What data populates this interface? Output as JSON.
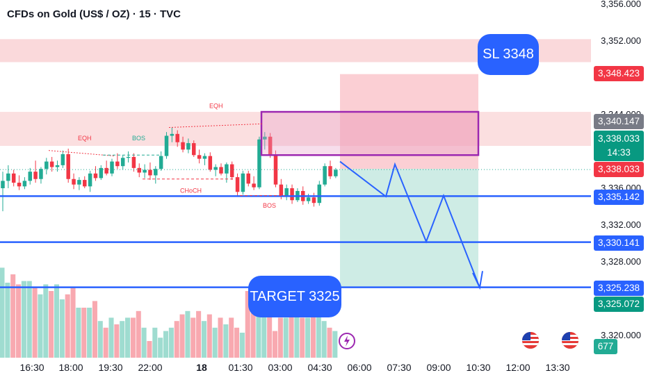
{
  "title": "CFDs on Gold (US$ / OZ) · 15 · TVC",
  "y_axis_labels": [
    "3,356.000",
    "3,352.000",
    "3,344.000",
    "3,336.000",
    "3,332.000",
    "3,328.000",
    "3,320.000"
  ],
  "x_axis_labels": [
    "16:30",
    "18:00",
    "19:30",
    "22:00",
    "18",
    "01:30",
    "03:00",
    "04:30",
    "06:00",
    "07:30",
    "09:00",
    "10:30",
    "12:00",
    "13:30"
  ],
  "price_tags": {
    "sl_level": "3,348.423",
    "upper_zone": "3,340.147",
    "last_price": "3,338.033",
    "countdown": "14:33",
    "dotted_price": "3,338.033",
    "line_1": "3,335.142",
    "line_2": "3,330.141",
    "line_3": "3,325.238",
    "target_level": "3,325.072",
    "volume": "677"
  },
  "annotations": {
    "sl_pill": "SL 3348",
    "target_pill": "TARGET 3325",
    "eqh_1": "EQH",
    "eqh_2": "EQH",
    "bos_1": "BOS",
    "bos_2": "BOS",
    "choch": "CHoCH"
  },
  "colors": {
    "up": "#22ab94",
    "down": "#f23645",
    "line_blue": "#2962ff",
    "zone_pink": "#f8c9cc",
    "box_purple": "#9c27b0"
  },
  "icons": [
    "lightning-icon",
    "us-flag-icon",
    "us-flag-icon"
  ],
  "chart_data": {
    "type": "candlestick",
    "title": "CFDs on Gold (US$ / OZ) · 15 · TVC",
    "y_range": [
      3318,
      3356
    ],
    "y_ticks": [
      3356,
      3352,
      3344,
      3336,
      3332,
      3328,
      3320
    ],
    "x_ticks": [
      "16:30",
      "18:00",
      "19:30",
      "22:00",
      "18",
      "01:30",
      "03:00",
      "04:30",
      "06:00",
      "07:30",
      "09:00",
      "10:30",
      "12:00",
      "13:30"
    ],
    "horizontal_lines": [
      3335.142,
      3330.141,
      3325.238
    ],
    "last_price": 3338.033,
    "stop_loss": 3348,
    "target": 3325,
    "candles": [
      {
        "o": 3336.0,
        "h": 3337.8,
        "l": 3333.5,
        "c": 3336.8
      },
      {
        "o": 3336.8,
        "h": 3338.5,
        "l": 3336.0,
        "c": 3337.6
      },
      {
        "o": 3337.6,
        "h": 3338.0,
        "l": 3336.2,
        "c": 3336.6
      },
      {
        "o": 3336.6,
        "h": 3337.4,
        "l": 3335.8,
        "c": 3336.2
      },
      {
        "o": 3336.2,
        "h": 3337.2,
        "l": 3335.9,
        "c": 3336.8
      },
      {
        "o": 3336.8,
        "h": 3338.2,
        "l": 3336.4,
        "c": 3337.8
      },
      {
        "o": 3337.8,
        "h": 3339.0,
        "l": 3336.6,
        "c": 3337.0
      },
      {
        "o": 3337.0,
        "h": 3338.3,
        "l": 3336.5,
        "c": 3338.1
      },
      {
        "o": 3338.1,
        "h": 3339.3,
        "l": 3337.5,
        "c": 3338.9
      },
      {
        "o": 3338.9,
        "h": 3339.4,
        "l": 3337.8,
        "c": 3338.3
      },
      {
        "o": 3338.3,
        "h": 3339.0,
        "l": 3337.8,
        "c": 3338.5
      },
      {
        "o": 3338.5,
        "h": 3340.1,
        "l": 3338.2,
        "c": 3339.7
      },
      {
        "o": 3339.7,
        "h": 3340.3,
        "l": 3336.6,
        "c": 3337.0
      },
      {
        "o": 3337.0,
        "h": 3337.6,
        "l": 3335.9,
        "c": 3336.4
      },
      {
        "o": 3336.4,
        "h": 3337.2,
        "l": 3335.8,
        "c": 3336.9
      },
      {
        "o": 3336.9,
        "h": 3337.3,
        "l": 3336.0,
        "c": 3336.2
      },
      {
        "o": 3336.2,
        "h": 3337.9,
        "l": 3335.6,
        "c": 3337.6
      },
      {
        "o": 3337.6,
        "h": 3338.4,
        "l": 3336.8,
        "c": 3337.1
      },
      {
        "o": 3337.1,
        "h": 3338.5,
        "l": 3336.9,
        "c": 3338.2
      },
      {
        "o": 3338.2,
        "h": 3339.0,
        "l": 3337.4,
        "c": 3337.6
      },
      {
        "o": 3337.6,
        "h": 3339.2,
        "l": 3337.3,
        "c": 3338.9
      },
      {
        "o": 3338.9,
        "h": 3339.8,
        "l": 3338.1,
        "c": 3338.4
      },
      {
        "o": 3338.4,
        "h": 3339.6,
        "l": 3338.0,
        "c": 3339.3
      },
      {
        "o": 3339.3,
        "h": 3340.0,
        "l": 3338.8,
        "c": 3339.4
      },
      {
        "o": 3339.4,
        "h": 3339.8,
        "l": 3337.8,
        "c": 3338.2
      },
      {
        "o": 3338.2,
        "h": 3338.7,
        "l": 3337.2,
        "c": 3337.7
      },
      {
        "o": 3337.7,
        "h": 3338.6,
        "l": 3337.1,
        "c": 3338.0
      },
      {
        "o": 3338.0,
        "h": 3338.8,
        "l": 3336.9,
        "c": 3337.4
      },
      {
        "o": 3337.4,
        "h": 3338.4,
        "l": 3336.5,
        "c": 3338.1
      },
      {
        "o": 3338.1,
        "h": 3340.0,
        "l": 3337.9,
        "c": 3339.5
      },
      {
        "o": 3339.5,
        "h": 3342.1,
        "l": 3339.2,
        "c": 3341.7
      },
      {
        "o": 3341.7,
        "h": 3342.6,
        "l": 3341.0,
        "c": 3341.9
      },
      {
        "o": 3341.9,
        "h": 3342.3,
        "l": 3340.5,
        "c": 3341.0
      },
      {
        "o": 3341.0,
        "h": 3341.6,
        "l": 3339.9,
        "c": 3340.2
      },
      {
        "o": 3340.2,
        "h": 3341.4,
        "l": 3339.8,
        "c": 3340.9
      },
      {
        "o": 3340.9,
        "h": 3341.2,
        "l": 3339.4,
        "c": 3339.6
      },
      {
        "o": 3339.6,
        "h": 3340.2,
        "l": 3338.7,
        "c": 3339.2
      },
      {
        "o": 3339.2,
        "h": 3339.8,
        "l": 3338.5,
        "c": 3339.5
      },
      {
        "o": 3339.5,
        "h": 3339.9,
        "l": 3337.8,
        "c": 3338.0
      },
      {
        "o": 3338.0,
        "h": 3338.6,
        "l": 3337.3,
        "c": 3338.3
      },
      {
        "o": 3338.3,
        "h": 3338.7,
        "l": 3337.4,
        "c": 3337.6
      },
      {
        "o": 3337.6,
        "h": 3338.8,
        "l": 3336.6,
        "c": 3338.6
      },
      {
        "o": 3338.6,
        "h": 3338.9,
        "l": 3336.9,
        "c": 3337.2
      },
      {
        "o": 3337.2,
        "h": 3337.6,
        "l": 3335.2,
        "c": 3335.6
      },
      {
        "o": 3335.6,
        "h": 3337.9,
        "l": 3335.3,
        "c": 3337.6
      },
      {
        "o": 3337.6,
        "h": 3337.9,
        "l": 3336.2,
        "c": 3336.5
      },
      {
        "o": 3336.5,
        "h": 3337.3,
        "l": 3335.8,
        "c": 3336.1
      },
      {
        "o": 3336.1,
        "h": 3341.6,
        "l": 3335.9,
        "c": 3341.3
      },
      {
        "o": 3341.3,
        "h": 3342.1,
        "l": 3340.2,
        "c": 3341.6
      },
      {
        "o": 3341.6,
        "h": 3342.0,
        "l": 3339.3,
        "c": 3339.6
      },
      {
        "o": 3339.6,
        "h": 3340.1,
        "l": 3336.1,
        "c": 3336.4
      },
      {
        "o": 3336.4,
        "h": 3337.0,
        "l": 3334.8,
        "c": 3335.2
      },
      {
        "o": 3335.2,
        "h": 3336.4,
        "l": 3334.7,
        "c": 3336.0
      },
      {
        "o": 3336.0,
        "h": 3336.4,
        "l": 3334.3,
        "c": 3334.7
      },
      {
        "o": 3334.7,
        "h": 3336.0,
        "l": 3334.5,
        "c": 3335.7
      },
      {
        "o": 3335.7,
        "h": 3336.2,
        "l": 3334.2,
        "c": 3334.6
      },
      {
        "o": 3334.6,
        "h": 3335.4,
        "l": 3334.3,
        "c": 3335.0
      },
      {
        "o": 3335.0,
        "h": 3335.5,
        "l": 3334.0,
        "c": 3334.4
      },
      {
        "o": 3334.4,
        "h": 3336.8,
        "l": 3334.1,
        "c": 3336.4
      },
      {
        "o": 3336.4,
        "h": 3338.7,
        "l": 3336.2,
        "c": 3338.4
      },
      {
        "o": 3338.4,
        "h": 3339.0,
        "l": 3337.0,
        "c": 3337.3
      },
      {
        "o": 3337.3,
        "h": 3338.2,
        "l": 3337.1,
        "c": 3338.0
      }
    ],
    "volume": [
      54,
      45,
      50,
      44,
      46,
      46,
      42,
      38,
      44,
      40,
      44,
      35,
      38,
      42,
      30,
      30,
      30,
      34,
      22,
      18,
      24,
      20,
      22,
      24,
      24,
      28,
      18,
      10,
      18,
      12,
      16,
      18,
      22,
      26,
      28,
      24,
      28,
      22,
      26,
      18,
      24,
      20,
      24,
      18,
      15,
      40,
      42,
      28,
      44,
      30,
      16,
      24,
      24,
      28,
      26,
      24,
      24,
      26,
      28,
      22,
      18,
      16
    ]
  }
}
